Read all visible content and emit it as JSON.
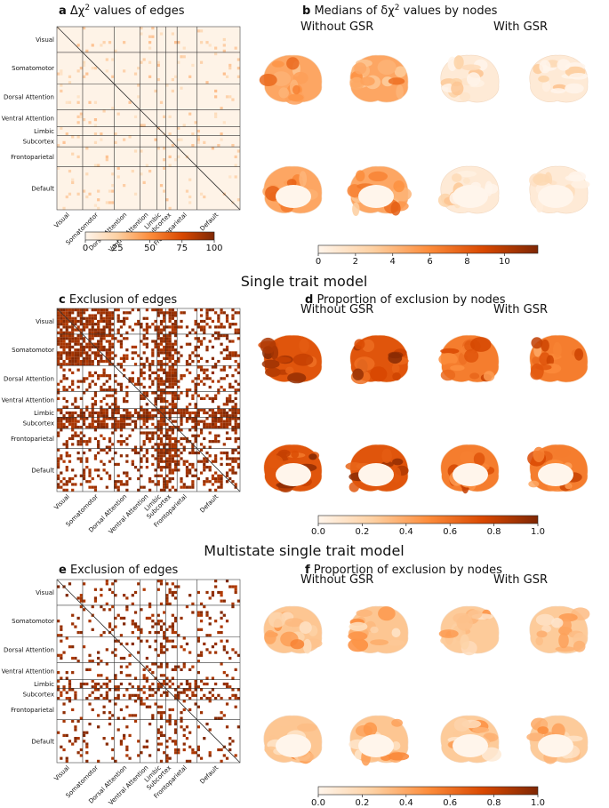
{
  "colors": {
    "low": "#fff5eb",
    "mid": "#f5923e",
    "high": "#7f2704",
    "grid": "#333333",
    "background": "#ffffff"
  },
  "networks": [
    "Visual",
    "Somatomotor",
    "Dorsal Attention",
    "Ventral Attention",
    "Limbic",
    "Subcortex",
    "Frontoparietal",
    "Default"
  ],
  "network_fraction": [
    0.14,
    0.17,
    0.14,
    0.09,
    0.05,
    0.06,
    0.12,
    0.23
  ],
  "sections": {
    "section1": "Single trait model",
    "section2": "Multistate single trait model"
  },
  "panels": {
    "a": {
      "letter": "a",
      "title_pre": " Δχ",
      "title_sup": "2",
      "title_post": " values of edges",
      "density": 0.06,
      "colorbar": {
        "ticks": [
          "0",
          "25",
          "50",
          "75",
          "100"
        ],
        "tick_values": [
          0,
          25,
          50,
          75,
          100
        ],
        "min": 0,
        "max": 100
      }
    },
    "b": {
      "letter": "b",
      "title_pre": " Medians of δχ",
      "title_sup": "2",
      "title_post": " values by nodes",
      "without_gsr": "Without GSR",
      "with_gsr": "With GSR",
      "brain_levels": {
        "without": 0.45,
        "with": 0.08
      },
      "colorbar": {
        "ticks": [
          "0",
          "2",
          "4",
          "6",
          "8",
          "10"
        ],
        "tick_values": [
          0,
          2,
          4,
          6,
          8,
          10
        ],
        "min": 0,
        "max": 11.8
      }
    },
    "c": {
      "letter": "c",
      "title": " Exclusion of edges",
      "density": 0.28
    },
    "d": {
      "letter": "d",
      "title": " Proportion of exclusion by nodes",
      "without_gsr": "Without GSR",
      "with_gsr": "With GSR",
      "brain_levels": {
        "without": 0.78,
        "with": 0.62
      },
      "colorbar": {
        "ticks": [
          "0.0",
          "0.2",
          "0.4",
          "0.6",
          "0.8",
          "1.0"
        ],
        "tick_values": [
          0,
          0.2,
          0.4,
          0.6,
          0.8,
          1.0
        ],
        "min": 0,
        "max": 1
      }
    },
    "e": {
      "letter": "e",
      "title": " Exclusion of edges",
      "density": 0.12
    },
    "f": {
      "letter": "f",
      "title": " Proportion of exclusion by nodes",
      "without_gsr": "Without GSR",
      "with_gsr": "With GSR",
      "brain_levels": {
        "without": 0.32,
        "with": 0.3
      },
      "colorbar": {
        "ticks": [
          "0.0",
          "0.2",
          "0.4",
          "0.6",
          "0.8",
          "1.0"
        ],
        "tick_values": [
          0,
          0.2,
          0.4,
          0.6,
          0.8,
          1.0
        ],
        "min": 0,
        "max": 1
      }
    }
  },
  "chart_data": [
    {
      "type": "heatmap",
      "panel": "a",
      "title": "Δχ2 values of edges",
      "rows": [
        "Visual",
        "Somatomotor",
        "Dorsal Attention",
        "Ventral Attention",
        "Limbic",
        "Subcortex",
        "Frontoparietal",
        "Default"
      ],
      "columns": [
        "Visual",
        "Somatomotor",
        "Dorsal Attention",
        "Ventral Attention",
        "Limbic",
        "Subcortex",
        "Frontoparietal",
        "Default"
      ],
      "color_range": [
        0,
        100
      ]
    },
    {
      "type": "heatmap",
      "panel": "b",
      "title": "Medians of δχ2 values by nodes",
      "groups": [
        "Without GSR",
        "With GSR"
      ],
      "color_range": [
        0,
        11.8
      ]
    },
    {
      "type": "heatmap",
      "panel": "c",
      "title": "Exclusion of edges",
      "rows": [
        "Visual",
        "Somatomotor",
        "Dorsal Attention",
        "Ventral Attention",
        "Limbic",
        "Subcortex",
        "Frontoparietal",
        "Default"
      ]
    },
    {
      "type": "heatmap",
      "panel": "d",
      "title": "Proportion of exclusion by nodes",
      "groups": [
        "Without GSR",
        "With GSR"
      ],
      "color_range": [
        0,
        1
      ]
    },
    {
      "type": "heatmap",
      "panel": "e",
      "title": "Exclusion of edges",
      "rows": [
        "Visual",
        "Somatomotor",
        "Dorsal Attention",
        "Ventral Attention",
        "Limbic",
        "Subcortex",
        "Frontoparietal",
        "Default"
      ]
    },
    {
      "type": "heatmap",
      "panel": "f",
      "title": "Proportion of exclusion by nodes",
      "groups": [
        "Without GSR",
        "With GSR"
      ],
      "color_range": [
        0,
        1
      ]
    }
  ]
}
